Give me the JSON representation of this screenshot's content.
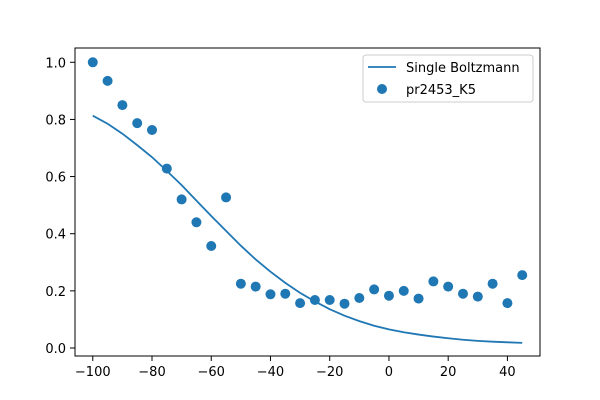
{
  "chart_data": {
    "type": "scatter",
    "title": "",
    "xlabel": "",
    "ylabel": "",
    "xlim": [
      -106,
      51
    ],
    "ylim": [
      -0.028,
      1.05
    ],
    "grid": false,
    "legend_position": "top-right",
    "x_ticks": [
      -100,
      -80,
      -60,
      -40,
      -20,
      0,
      20,
      40
    ],
    "x_tick_labels": [
      "−100",
      "−80",
      "−60",
      "−40",
      "−20",
      "0",
      "20",
      "40"
    ],
    "y_ticks": [
      0.0,
      0.2,
      0.4,
      0.6,
      0.8,
      1.0
    ],
    "y_tick_labels": [
      "0.0",
      "0.2",
      "0.4",
      "0.6",
      "0.8",
      "1.0"
    ],
    "series": [
      {
        "name": "Single Boltzmann",
        "kind": "line",
        "color": "#1f77b4",
        "x": [
          -100,
          -95,
          -90,
          -85,
          -80,
          -75,
          -70,
          -65,
          -60,
          -55,
          -50,
          -45,
          -40,
          -35,
          -30,
          -25,
          -20,
          -15,
          -10,
          -5,
          0,
          5,
          10,
          15,
          20,
          25,
          30,
          35,
          40,
          45
        ],
        "y": [
          0.813,
          0.785,
          0.75,
          0.71,
          0.668,
          0.62,
          0.57,
          0.516,
          0.462,
          0.41,
          0.358,
          0.31,
          0.267,
          0.228,
          0.193,
          0.163,
          0.136,
          0.113,
          0.094,
          0.078,
          0.065,
          0.055,
          0.047,
          0.04,
          0.034,
          0.029,
          0.025,
          0.022,
          0.02,
          0.018
        ]
      },
      {
        "name": "pr2453_K5",
        "kind": "scatter",
        "color": "#1f77b4",
        "x": [
          -100,
          -95,
          -90,
          -85,
          -80,
          -75,
          -70,
          -65,
          -60,
          -55,
          -50,
          -45,
          -40,
          -35,
          -30,
          -25,
          -20,
          -15,
          -10,
          -5,
          0,
          5,
          10,
          15,
          20,
          25,
          30,
          35,
          40,
          45
        ],
        "y": [
          1.0,
          0.935,
          0.85,
          0.787,
          0.763,
          0.628,
          0.52,
          0.44,
          0.357,
          0.527,
          0.225,
          0.215,
          0.188,
          0.19,
          0.157,
          0.168,
          0.168,
          0.155,
          0.175,
          0.205,
          0.183,
          0.2,
          0.173,
          0.233,
          0.215,
          0.19,
          0.18,
          0.225,
          0.157,
          0.255
        ]
      }
    ]
  }
}
